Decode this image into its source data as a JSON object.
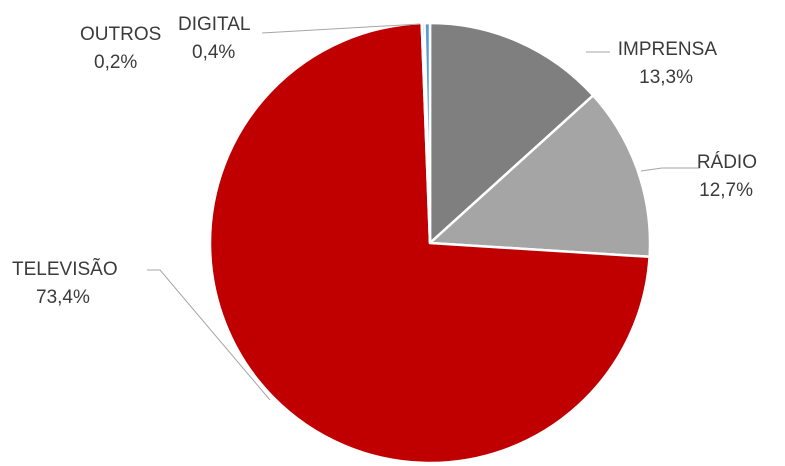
{
  "chart_data": {
    "type": "pie",
    "title": "",
    "slices": [
      {
        "label": "IMPRENSA",
        "value": 13.3,
        "value_label": "13,3%",
        "color": "#7f7f7f"
      },
      {
        "label": "RÁDIO",
        "value": 12.7,
        "value_label": "12,7%",
        "color": "#a5a5a5"
      },
      {
        "label": "TELEVISÃO",
        "value": 73.4,
        "value_label": "73,4%",
        "color": "#c00000"
      },
      {
        "label": "OUTROS",
        "value": 0.2,
        "value_label": "0,2%",
        "color": "#4472c4"
      },
      {
        "label": "DIGITAL",
        "value": 0.4,
        "value_label": "0,4%",
        "color": "#5b9bd5"
      }
    ],
    "start_angle_deg": 0,
    "direction": "clockwise",
    "legend": "none",
    "data_labels": "outside-with-leader-lines"
  }
}
